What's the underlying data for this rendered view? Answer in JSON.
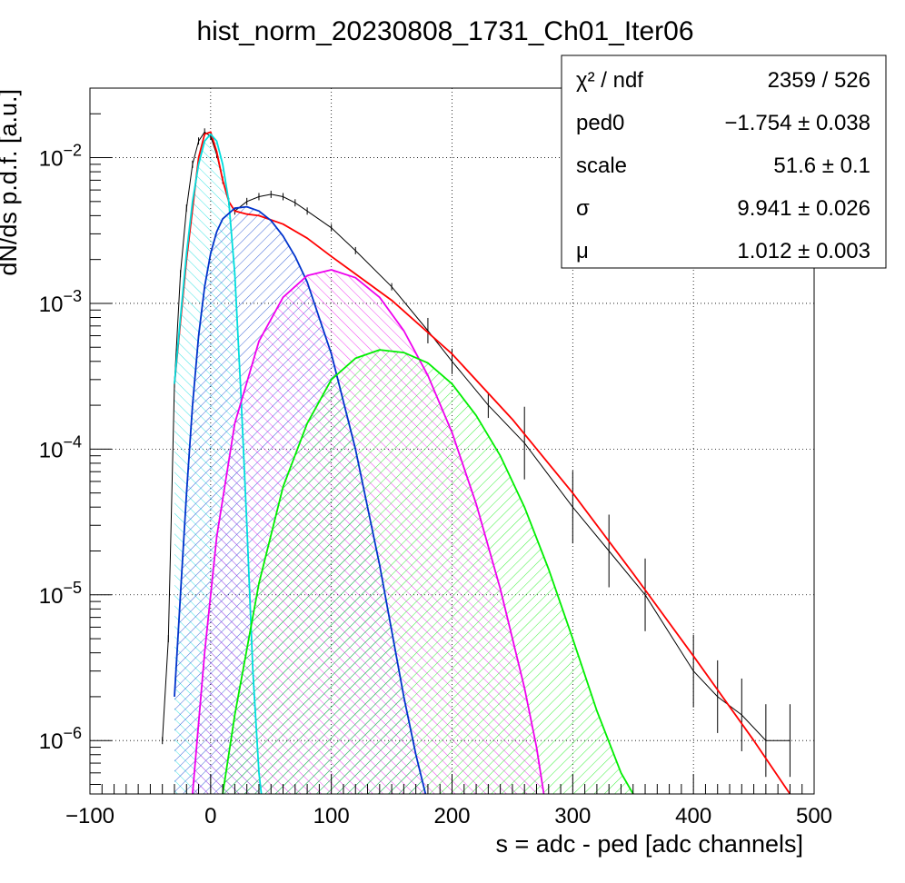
{
  "chart_data": {
    "type": "line",
    "title": "hist_norm_20230808_1731_Ch01_Iter06",
    "xlabel": "s = adc - ped [adc channels]",
    "ylabel": "dN/ds p.d.f. [a.u.]",
    "xlim": [
      -100,
      500
    ],
    "ylim": [
      4.3e-07,
      0.03
    ],
    "yscale": "log",
    "grid": true,
    "legend_position": "top-right",
    "xticks": [
      "−100",
      "0",
      "100",
      "200",
      "300",
      "400",
      "500"
    ],
    "yticks": [
      {
        "base": "10",
        "exp": "−2",
        "value": 0.01
      },
      {
        "base": "10",
        "exp": "−3",
        "value": 0.001
      },
      {
        "base": "10",
        "exp": "−4",
        "value": 0.0001
      },
      {
        "base": "10",
        "exp": "−5",
        "value": 1e-05
      },
      {
        "base": "10",
        "exp": "−6",
        "value": 1e-06
      }
    ],
    "stats": [
      {
        "label": "χ² / ndf",
        "value": "2359 / 526"
      },
      {
        "label": "ped0",
        "value": "−1.754 ± 0.038"
      },
      {
        "label": "scale",
        "value": "51.6 ± 0.1"
      },
      {
        "label": "σ",
        "value": "9.941 ± 0.026"
      },
      {
        "label": "μ",
        "value": "1.012 ± 0.003"
      }
    ],
    "series": [
      {
        "role": "histogram",
        "color": "#000000",
        "x": [
          -40,
          -35,
          -30,
          -25,
          -20,
          -15,
          -10,
          -5,
          0,
          5,
          10,
          15,
          20,
          30,
          40,
          50,
          60,
          70,
          80,
          100,
          120,
          150,
          180,
          200,
          230,
          260,
          300,
          330,
          360,
          400,
          420,
          440,
          460,
          480
        ],
        "y": [
          1e-06,
          5e-06,
          0.00028,
          0.0016,
          0.0045,
          0.009,
          0.013,
          0.015,
          0.014,
          0.0105,
          0.007,
          0.005,
          0.0043,
          0.005,
          0.0054,
          0.0056,
          0.0054,
          0.0049,
          0.0043,
          0.0033,
          0.0023,
          0.0013,
          0.00065,
          0.0004,
          0.0002,
          0.00011,
          4e-05,
          2e-05,
          1e-05,
          3e-06,
          2e-06,
          1.5e-06,
          1e-06,
          1e-06
        ]
      },
      {
        "role": "total fit",
        "color": "#ff0000",
        "x": [
          -30,
          -20,
          -10,
          -5,
          0,
          5,
          10,
          15,
          20,
          30,
          40,
          60,
          80,
          100,
          150,
          200,
          250,
          300,
          350,
          400,
          450,
          480
        ],
        "y": [
          0.00028,
          0.002,
          0.01,
          0.0145,
          0.015,
          0.011,
          0.007,
          0.005,
          0.0043,
          0.0041,
          0.004,
          0.0035,
          0.0028,
          0.0021,
          0.00105,
          0.00045,
          0.00016,
          5e-05,
          1.4e-05,
          3.8e-06,
          1e-06,
          4.3e-07
        ]
      },
      {
        "role": "0 p.e. component",
        "color": "#00dddd",
        "hatch": true,
        "x": [
          -30,
          -25,
          -20,
          -15,
          -10,
          -5,
          0,
          5,
          10,
          15,
          20,
          25,
          30,
          35,
          40,
          42
        ],
        "y": [
          0.00028,
          0.0008,
          0.0022,
          0.005,
          0.009,
          0.013,
          0.0145,
          0.013,
          0.009,
          0.005,
          0.0016,
          0.00025,
          3e-05,
          3e-06,
          6e-07,
          4.3e-07
        ]
      },
      {
        "role": "1 p.e. component",
        "color": "#0033cc",
        "hatch": true,
        "x": [
          -30,
          -25,
          -20,
          -15,
          -10,
          -5,
          0,
          5,
          10,
          20,
          30,
          40,
          50,
          60,
          70,
          80,
          100,
          120,
          140,
          160,
          170,
          178
        ],
        "y": [
          2e-06,
          1e-05,
          5e-05,
          0.0002,
          0.0006,
          0.0013,
          0.0022,
          0.0031,
          0.0038,
          0.0045,
          0.0046,
          0.0043,
          0.0037,
          0.0029,
          0.0021,
          0.0014,
          0.00045,
          0.0001,
          1.6e-05,
          2e-06,
          8e-07,
          4.3e-07
        ]
      },
      {
        "role": "2 p.e. component",
        "color": "#ee00ee",
        "hatch": true,
        "x": [
          -15,
          -5,
          5,
          20,
          40,
          60,
          80,
          100,
          120,
          140,
          160,
          180,
          200,
          220,
          240,
          260,
          270,
          276
        ],
        "y": [
          4.3e-07,
          4e-06,
          2.5e-05,
          0.00015,
          0.00055,
          0.0011,
          0.00155,
          0.0017,
          0.0015,
          0.0011,
          0.00065,
          0.00032,
          0.00013,
          4.2e-05,
          1.1e-05,
          2.3e-06,
          9e-07,
          4.3e-07
        ]
      },
      {
        "role": "3 p.e. component",
        "color": "#00ee00",
        "hatch": true,
        "x": [
          10,
          20,
          40,
          60,
          80,
          100,
          120,
          140,
          160,
          180,
          200,
          220,
          240,
          260,
          280,
          300,
          320,
          340,
          350
        ],
        "y": [
          4.3e-07,
          1.5e-06,
          1.2e-05,
          5.5e-05,
          0.00015,
          0.0003,
          0.00042,
          0.00048,
          0.00046,
          0.00039,
          0.00028,
          0.00017,
          9e-05,
          4e-05,
          1.5e-05,
          5e-06,
          1.6e-06,
          6e-07,
          4.3e-07
        ]
      }
    ]
  }
}
